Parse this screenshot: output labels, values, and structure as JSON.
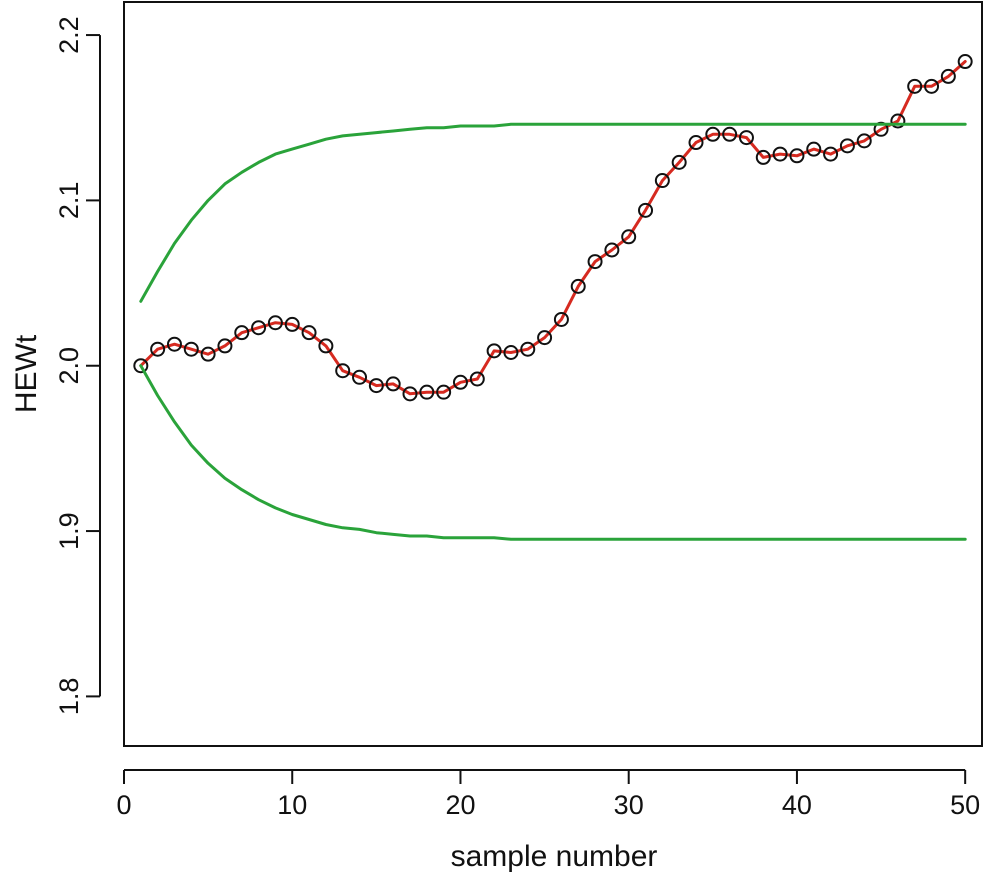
{
  "chart_data": {
    "type": "line",
    "title": "",
    "xlabel": "sample number",
    "ylabel": "HEWt",
    "xlim": [
      0,
      51
    ],
    "ylim": [
      1.77,
      2.22
    ],
    "xticks": [
      0,
      10,
      20,
      30,
      40,
      50
    ],
    "yticks": [
      1.8,
      1.9,
      2.0,
      2.1,
      2.2
    ],
    "xtick_labels": [
      "0",
      "10",
      "20",
      "30",
      "40",
      "50"
    ],
    "ytick_labels": [
      "1.8",
      "1.9",
      "2.0",
      "2.1",
      "2.2"
    ],
    "grid": false,
    "series": [
      {
        "role": "observed",
        "color": "#d62a20",
        "marker": "open-circle",
        "marker_color": "#111111",
        "x": [
          1,
          2,
          3,
          4,
          5,
          6,
          7,
          8,
          9,
          10,
          11,
          12,
          13,
          14,
          15,
          16,
          17,
          18,
          19,
          20,
          21,
          22,
          23,
          24,
          25,
          26,
          27,
          28,
          29,
          30,
          31,
          32,
          33,
          34,
          35,
          36,
          37,
          38,
          39,
          40,
          41,
          42,
          43,
          44,
          45,
          46,
          47,
          48,
          49,
          50
        ],
        "values": [
          2.0,
          2.01,
          2.013,
          2.01,
          2.007,
          2.012,
          2.02,
          2.023,
          2.026,
          2.025,
          2.02,
          2.012,
          1.997,
          1.993,
          1.988,
          1.989,
          1.983,
          1.984,
          1.984,
          1.99,
          1.992,
          2.009,
          2.008,
          2.01,
          2.017,
          2.028,
          2.048,
          2.063,
          2.07,
          2.078,
          2.094,
          2.112,
          2.123,
          2.135,
          2.14,
          2.14,
          2.138,
          2.126,
          2.128,
          2.127,
          2.131,
          2.128,
          2.133,
          2.136,
          2.143,
          2.148,
          2.169,
          2.169,
          2.175,
          2.184
        ]
      },
      {
        "role": "upper-limit",
        "color": "#2aa33a",
        "marker": "none",
        "x": [
          1,
          2,
          3,
          4,
          5,
          6,
          7,
          8,
          9,
          10,
          11,
          12,
          13,
          14,
          15,
          16,
          17,
          18,
          19,
          20,
          21,
          22,
          23,
          24,
          25,
          26,
          27,
          28,
          29,
          30,
          31,
          32,
          33,
          34,
          35,
          36,
          37,
          38,
          39,
          40,
          41,
          42,
          43,
          44,
          45,
          46,
          47,
          48,
          49,
          50
        ],
        "values": [
          2.039,
          2.057,
          2.074,
          2.088,
          2.1,
          2.11,
          2.117,
          2.123,
          2.128,
          2.131,
          2.134,
          2.137,
          2.139,
          2.14,
          2.141,
          2.142,
          2.143,
          2.144,
          2.144,
          2.145,
          2.145,
          2.145,
          2.146,
          2.146,
          2.146,
          2.146,
          2.146,
          2.146,
          2.146,
          2.146,
          2.146,
          2.146,
          2.146,
          2.146,
          2.146,
          2.146,
          2.146,
          2.146,
          2.146,
          2.146,
          2.146,
          2.146,
          2.146,
          2.146,
          2.146,
          2.146,
          2.146,
          2.146,
          2.146,
          2.146
        ]
      },
      {
        "role": "lower-limit",
        "color": "#2aa33a",
        "marker": "none",
        "x": [
          1,
          2,
          3,
          4,
          5,
          6,
          7,
          8,
          9,
          10,
          11,
          12,
          13,
          14,
          15,
          16,
          17,
          18,
          19,
          20,
          21,
          22,
          23,
          24,
          25,
          26,
          27,
          28,
          29,
          30,
          31,
          32,
          33,
          34,
          35,
          36,
          37,
          38,
          39,
          40,
          41,
          42,
          43,
          44,
          45,
          46,
          47,
          48,
          49,
          50
        ],
        "values": [
          2.0,
          1.982,
          1.966,
          1.952,
          1.941,
          1.932,
          1.925,
          1.919,
          1.914,
          1.91,
          1.907,
          1.904,
          1.902,
          1.901,
          1.899,
          1.898,
          1.897,
          1.897,
          1.896,
          1.896,
          1.896,
          1.896,
          1.895,
          1.895,
          1.895,
          1.895,
          1.895,
          1.895,
          1.895,
          1.895,
          1.895,
          1.895,
          1.895,
          1.895,
          1.895,
          1.895,
          1.895,
          1.895,
          1.895,
          1.895,
          1.895,
          1.895,
          1.895,
          1.895,
          1.895,
          1.895,
          1.895,
          1.895,
          1.895,
          1.895
        ]
      }
    ]
  }
}
